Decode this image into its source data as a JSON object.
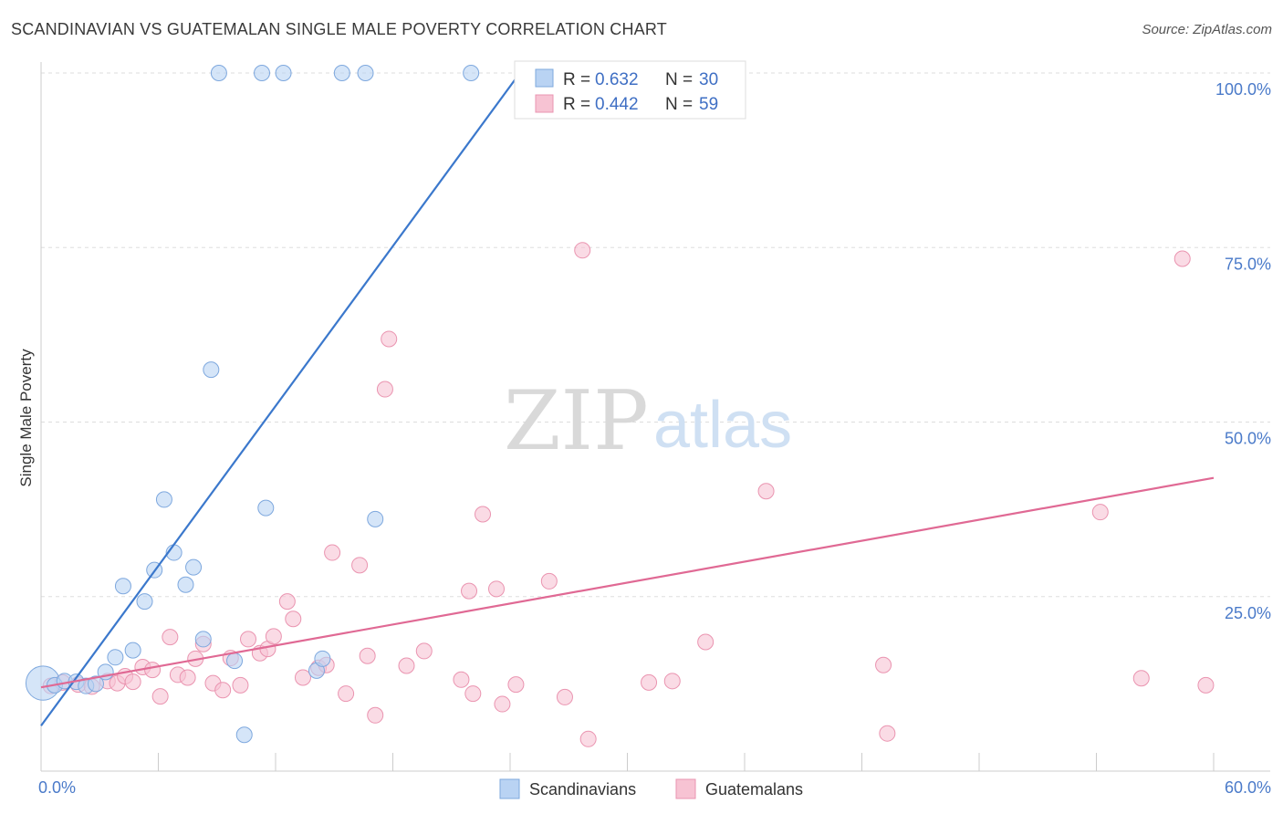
{
  "header": {
    "title": "SCANDINAVIAN VS GUATEMALAN SINGLE MALE POVERTY CORRELATION CHART",
    "source": "Source: ZipAtlas.com"
  },
  "watermark": {
    "zip": "ZIP",
    "atlas": "atlas"
  },
  "colors": {
    "blue_fill": "#b9d3f3",
    "blue_stroke": "#7ea8de",
    "blue_line": "#3b78cc",
    "pink_fill": "#f7c3d3",
    "pink_stroke": "#ea94b0",
    "pink_line": "#e06994",
    "grid": "#dddddd",
    "tick_text": "#4a7ac9"
  },
  "legend": {
    "rows": [
      {
        "r_label": "R = ",
        "r_value": "0.632",
        "n_label": "N = ",
        "n_value": "30"
      },
      {
        "r_label": "R = ",
        "r_value": "0.442",
        "n_label": "N = ",
        "n_value": "59"
      }
    ],
    "bottom": [
      "Scandinavians",
      "Guatemalans"
    ]
  },
  "chart_data": {
    "type": "scatter",
    "title": "SCANDINAVIAN VS GUATEMALAN SINGLE MALE POVERTY CORRELATION CHART",
    "xlabel": "",
    "ylabel": "Single Male Poverty",
    "xlim": [
      0,
      60
    ],
    "ylim": [
      0,
      102
    ],
    "x_tick_labels": [
      "0.0%",
      "60.0%"
    ],
    "y_ticks": [
      25,
      50,
      75,
      100
    ],
    "y_tick_labels": [
      "25.0%",
      "50.0%",
      "75.0%",
      "100.0%"
    ],
    "grid": "horizontal dashed",
    "legend_placement": "top-center",
    "series": [
      {
        "name": "Scandinavians",
        "R": 0.632,
        "N": 30,
        "trend": {
          "x0": 0,
          "y0": 6.5,
          "x1": 24.5,
          "y1": 100
        },
        "points": [
          [
            0.1,
            12.6,
            2.2
          ],
          [
            0.7,
            12.3,
            1
          ],
          [
            1.2,
            12.9,
            1
          ],
          [
            1.8,
            12.8,
            1
          ],
          [
            2.3,
            12.2,
            1
          ],
          [
            2.8,
            12.5,
            1
          ],
          [
            3.3,
            14.2,
            1
          ],
          [
            3.8,
            16.3,
            1
          ],
          [
            4.2,
            26.5,
            1
          ],
          [
            4.7,
            17.3,
            1
          ],
          [
            5.3,
            24.3,
            1
          ],
          [
            5.8,
            28.8,
            1
          ],
          [
            6.3,
            38.9,
            1
          ],
          [
            6.8,
            31.3,
            1
          ],
          [
            7.4,
            26.7,
            1
          ],
          [
            7.8,
            29.2,
            1
          ],
          [
            8.3,
            18.9,
            1
          ],
          [
            8.7,
            57.5,
            1
          ],
          [
            9.1,
            100,
            1
          ],
          [
            9.9,
            15.8,
            1
          ],
          [
            10.4,
            5.2,
            1
          ],
          [
            11.3,
            100,
            1
          ],
          [
            11.5,
            37.7,
            1
          ],
          [
            12.4,
            100,
            1
          ],
          [
            14.1,
            14.4,
            1
          ],
          [
            14.4,
            16.1,
            1
          ],
          [
            15.4,
            100,
            1
          ],
          [
            16.6,
            100,
            1
          ],
          [
            17.1,
            36.1,
            1
          ],
          [
            22.0,
            100,
            1
          ]
        ]
      },
      {
        "name": "Guatemalans",
        "R": 0.442,
        "N": 59,
        "trend": {
          "x0": 0,
          "y0": 12,
          "x1": 60,
          "y1": 42
        },
        "points": [
          [
            0.5,
            12.2,
            1
          ],
          [
            1.1,
            12.7,
            1
          ],
          [
            1.9,
            12.4,
            1
          ],
          [
            2.6,
            12.1,
            1
          ],
          [
            3.4,
            12.9,
            1
          ],
          [
            3.9,
            12.6,
            1
          ],
          [
            4.3,
            13.6,
            1
          ],
          [
            4.7,
            12.8,
            1
          ],
          [
            5.2,
            14.9,
            1
          ],
          [
            5.7,
            14.5,
            1
          ],
          [
            6.1,
            10.7,
            1
          ],
          [
            6.6,
            19.2,
            1
          ],
          [
            7.0,
            13.8,
            1
          ],
          [
            7.5,
            13.4,
            1
          ],
          [
            7.9,
            16.1,
            1
          ],
          [
            8.3,
            18.2,
            1
          ],
          [
            8.8,
            12.6,
            1
          ],
          [
            9.3,
            11.6,
            1
          ],
          [
            9.7,
            16.2,
            1
          ],
          [
            10.2,
            12.3,
            1
          ],
          [
            10.6,
            18.9,
            1
          ],
          [
            11.2,
            16.9,
            1
          ],
          [
            11.6,
            17.5,
            1
          ],
          [
            11.9,
            19.3,
            1
          ],
          [
            12.6,
            24.3,
            1
          ],
          [
            12.9,
            21.8,
            1
          ],
          [
            13.4,
            13.4,
            1
          ],
          [
            14.2,
            14.8,
            1
          ],
          [
            14.6,
            15.2,
            1
          ],
          [
            14.9,
            31.3,
            1
          ],
          [
            15.6,
            11.1,
            1
          ],
          [
            16.3,
            29.5,
            1
          ],
          [
            16.7,
            16.5,
            1
          ],
          [
            17.1,
            8.0,
            1
          ],
          [
            17.6,
            54.7,
            1
          ],
          [
            17.8,
            61.9,
            1
          ],
          [
            18.7,
            15.1,
            1
          ],
          [
            19.6,
            17.2,
            1
          ],
          [
            21.5,
            13.1,
            1
          ],
          [
            21.9,
            25.8,
            1
          ],
          [
            22.1,
            11.1,
            1
          ],
          [
            22.6,
            36.8,
            1
          ],
          [
            23.3,
            26.1,
            1
          ],
          [
            23.6,
            9.6,
            1
          ],
          [
            24.3,
            12.4,
            1
          ],
          [
            26.0,
            27.2,
            1
          ],
          [
            26.8,
            10.6,
            1
          ],
          [
            28.0,
            4.6,
            1
          ],
          [
            27.7,
            74.6,
            1
          ],
          [
            31.1,
            12.7,
            1
          ],
          [
            32.3,
            12.9,
            1
          ],
          [
            34.0,
            18.5,
            1
          ],
          [
            37.1,
            40.1,
            1
          ],
          [
            43.1,
            15.2,
            1
          ],
          [
            43.3,
            5.4,
            1
          ],
          [
            54.2,
            37.1,
            1
          ],
          [
            58.4,
            73.4,
            1
          ],
          [
            59.6,
            12.3,
            1
          ],
          [
            56.3,
            13.3,
            1
          ]
        ]
      }
    ]
  }
}
